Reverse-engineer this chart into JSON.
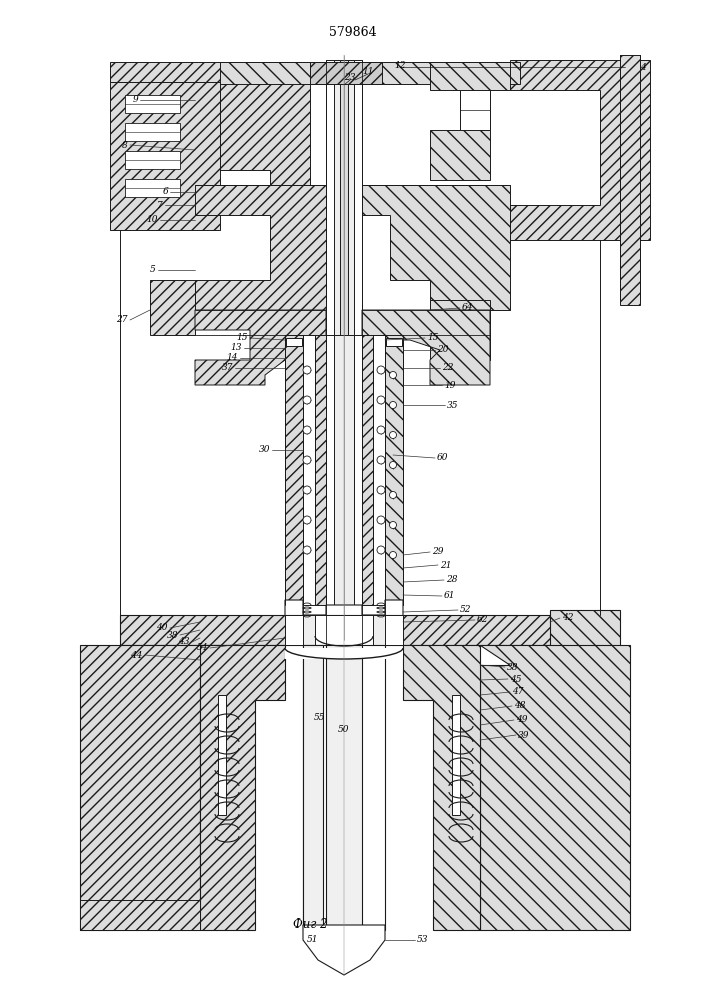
{
  "title": "579864",
  "caption": "Фиг 2",
  "bg_color": "#ffffff",
  "line_color": "#1a1a1a",
  "fig_width": 7.07,
  "fig_height": 10.0,
  "dpi": 100
}
